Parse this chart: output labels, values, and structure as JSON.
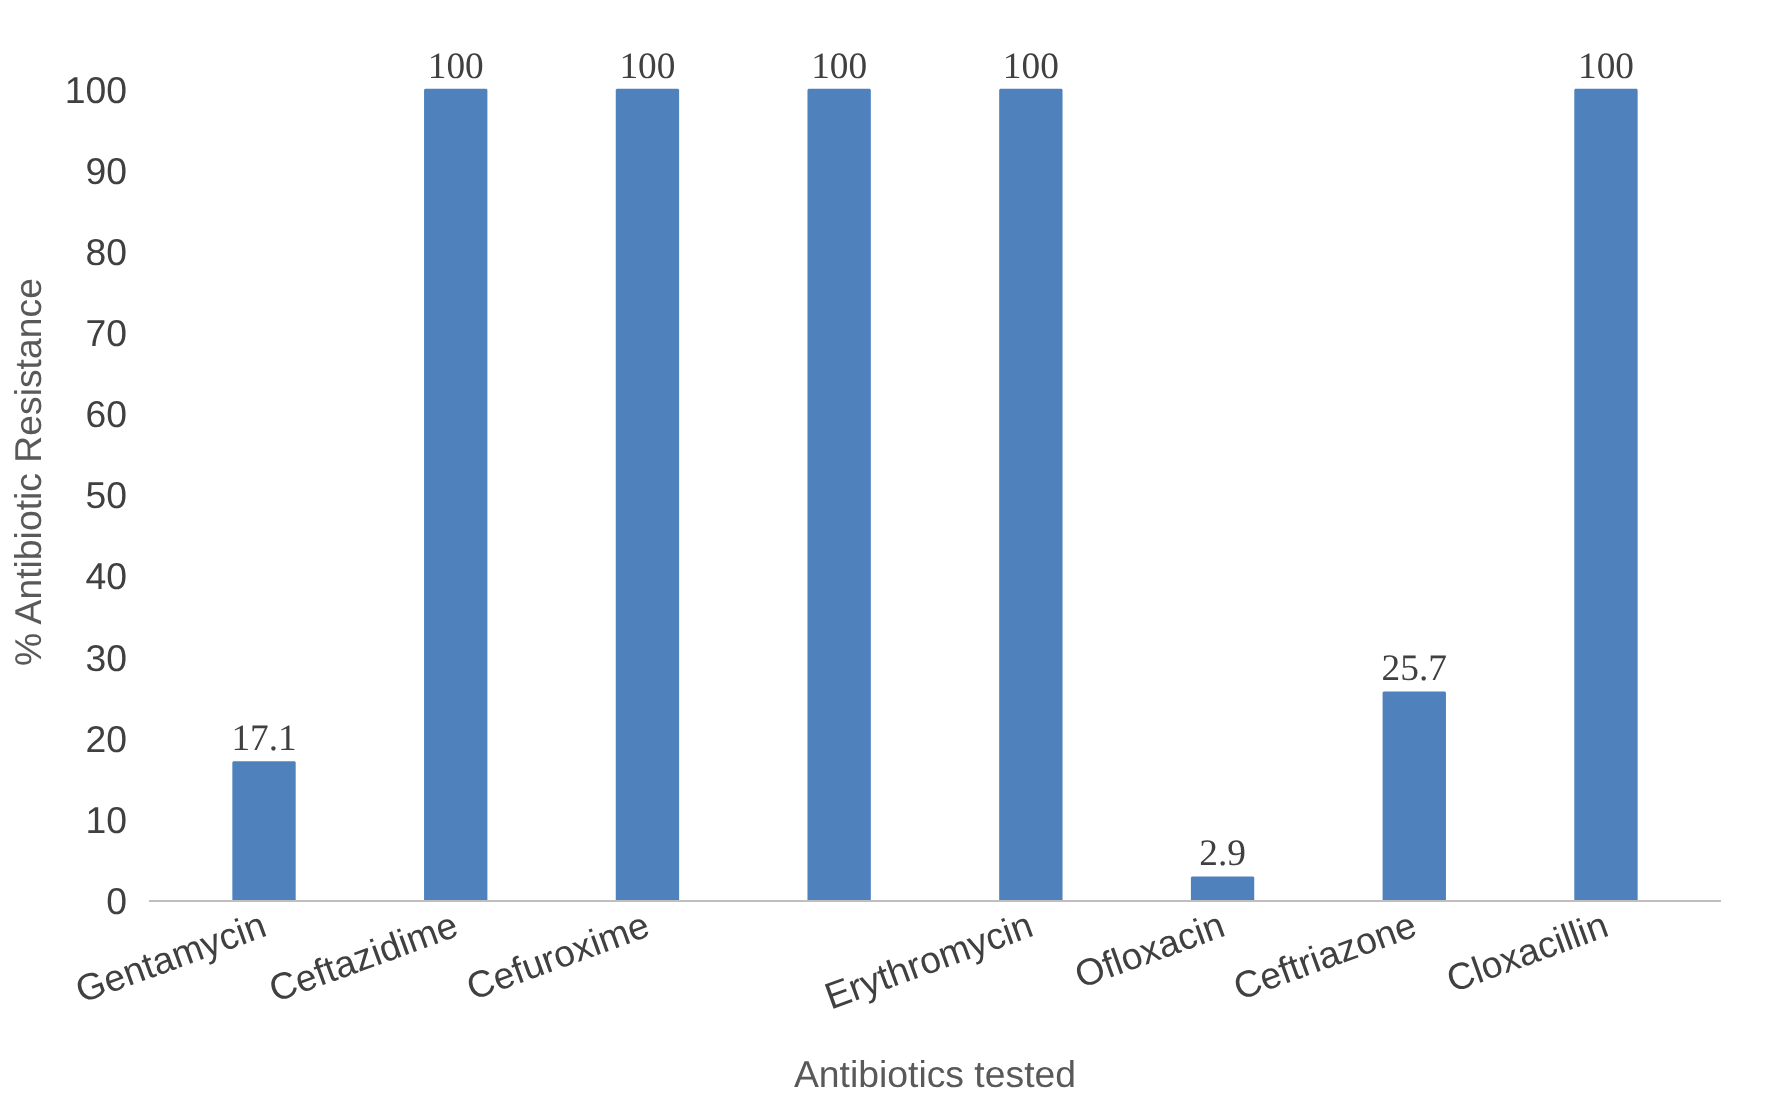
{
  "chart_data": {
    "type": "bar",
    "xlabel": "Antibiotics tested",
    "ylabel": "% Antibiotic Resistance",
    "categories": [
      "Gentamycin",
      "Ceftazidime",
      "Cefuroxime",
      null,
      "Erythromycin",
      "Ofloxacin",
      "Ceftriazone",
      "Cloxacillin"
    ],
    "values": [
      17.1,
      100,
      100,
      100,
      100,
      2.9,
      25.7,
      100
    ],
    "color": "#4f81bd",
    "ylim": [
      0,
      100
    ],
    "yticks": [
      0,
      10,
      20,
      30,
      40,
      50,
      60,
      70,
      80,
      90,
      100
    ],
    "grid": false,
    "data_labels": true
  }
}
